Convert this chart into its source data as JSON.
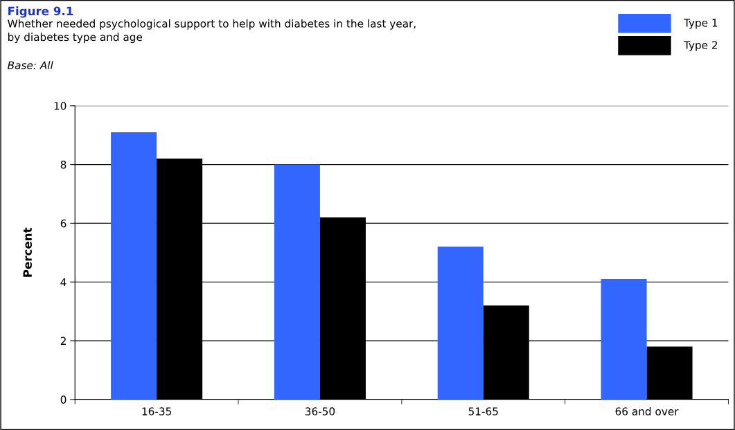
{
  "chart_data": {
    "type": "bar",
    "title": "Figure 9.1",
    "subtitle": "Whether needed psychological support to help with diabetes in the last year,\nby diabetes type and age",
    "annotations": [
      "Base: All"
    ],
    "ylabel": "Percent",
    "categories": [
      "16-35",
      "36-50",
      "51-65",
      "66 and over"
    ],
    "series": [
      {
        "name": "Type 1",
        "color": "#3366ff",
        "values": [
          9.1,
          8.0,
          5.2,
          4.1
        ]
      },
      {
        "name": "Type 2",
        "color": "#000000",
        "values": [
          8.2,
          6.2,
          3.2,
          1.8
        ]
      }
    ],
    "ylim": [
      0,
      10
    ],
    "yticks": [
      0,
      2,
      4,
      6,
      8,
      10
    ],
    "grid": "y",
    "legend": "top right"
  }
}
